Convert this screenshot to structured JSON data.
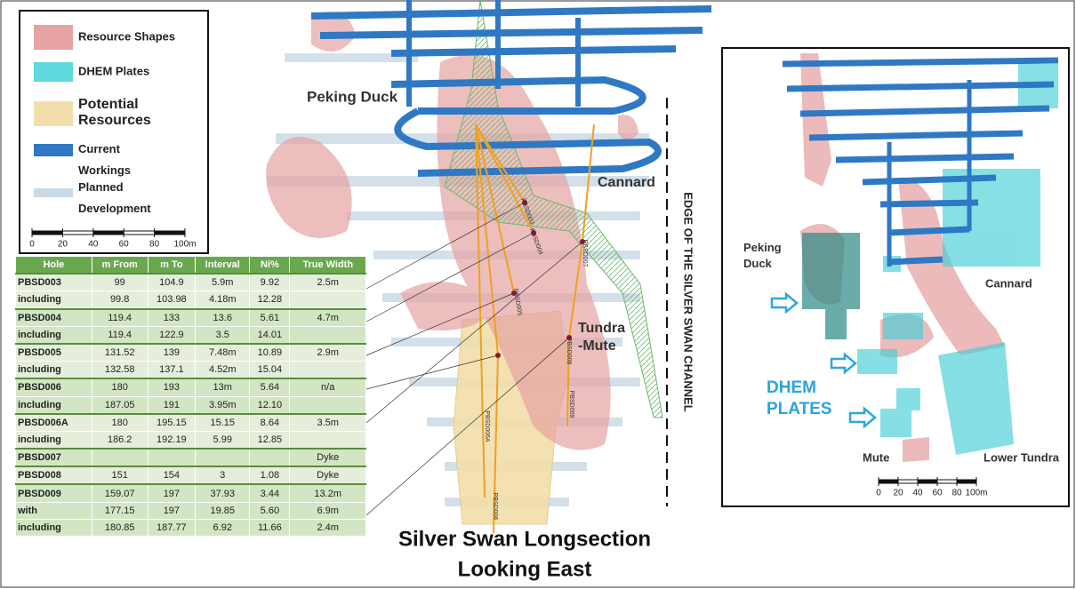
{
  "legend": {
    "items": [
      "Resource Shapes",
      "DHEM Plates",
      "Potential Resources",
      "Current Workings",
      "Planned Development"
    ],
    "scale_bar": [
      "0",
      "20",
      "40",
      "60",
      "80",
      "100m"
    ]
  },
  "section": {
    "labels": {
      "peking_duck": "Peking Duck",
      "cannard": "Cannard",
      "tundra_mute": "Tundra -Mute",
      "channel_edge": "EDGE OF THE SILVER SWAN CHANNEL"
    },
    "drill_holes": [
      "PBSD003",
      "PBSD004",
      "PBSD005",
      "PBSD007",
      "PBSD008",
      "PBSD009",
      "PBSD006A",
      "PBSD006"
    ]
  },
  "table": {
    "header": [
      "Hole",
      "m From",
      "m To",
      "Interval",
      "Ni%",
      "True Width"
    ],
    "rows": [
      [
        "PBSD003",
        "99",
        "104.9",
        "5.9m",
        "9.92",
        "2.5m"
      ],
      [
        "including",
        "99.8",
        "103.98",
        "4.18m",
        "12.28",
        null
      ],
      [
        "PBSD004",
        "119.4",
        "133",
        "13.6",
        "5.61",
        "4.7m"
      ],
      [
        "including",
        "119.4",
        "122.9",
        "3.5",
        "14.01",
        null
      ],
      [
        "PBSD005",
        "131.52",
        "139",
        "7.48m",
        "10.89",
        "2.9m"
      ],
      [
        "including",
        "132.58",
        "137.1",
        "4.52m",
        "15.04",
        null
      ],
      [
        "PBSD006",
        "180",
        "193",
        "13m",
        "5.64",
        "n/a"
      ],
      [
        "including",
        "187.05",
        "191",
        "3.95m",
        "12.10",
        null
      ],
      [
        "PBSD006A",
        "180",
        "195.15",
        "15.15",
        "8.64",
        "3.5m"
      ],
      [
        "including",
        "186.2",
        "192.19",
        "5.99",
        "12.85",
        null
      ],
      [
        "PBSD007",
        null,
        null,
        null,
        null,
        "Dyke"
      ],
      [
        "PBSD008",
        "151",
        "154",
        "3",
        "1.08",
        "Dyke"
      ],
      [
        "PBSD009",
        "159.07",
        "197",
        "37.93",
        "3.44",
        "13.2m"
      ],
      [
        "with",
        "177.15",
        "197",
        "19.85",
        "5.60",
        "6.9m"
      ],
      [
        "including",
        "180.85",
        "187.77",
        "6.92",
        "11.66",
        "2.4m"
      ]
    ]
  },
  "inset": {
    "labels": {
      "peking_duck": "Peking Duck",
      "cannard": "Cannard",
      "dhem_plates": "DHEM PLATES",
      "mute": "Mute",
      "lower_tundra": "Lower Tundra"
    },
    "scale_bar": [
      "0",
      "20",
      "40",
      "60",
      "80",
      "100m"
    ]
  },
  "title": {
    "line1": "Silver Swan Longsection",
    "line2": "Looking East"
  }
}
